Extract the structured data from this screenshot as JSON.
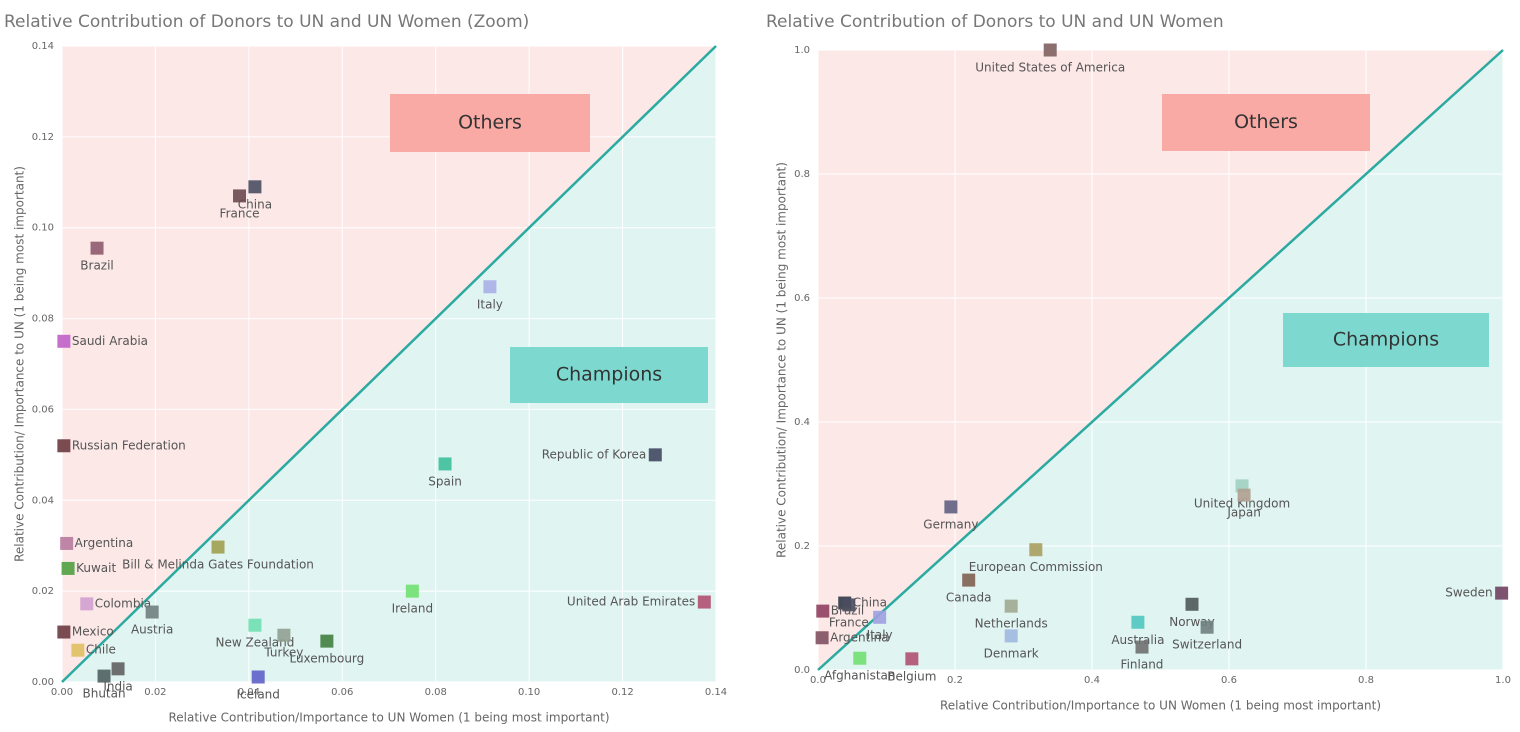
{
  "chart_data": [
    {
      "type": "scatter",
      "title": "Relative Contribution of Donors to UN and UN Women (Zoom)",
      "xlabel": "Relative Contribution/Importance to UN Women (1 being most important)",
      "ylabel": "Relative Contribution/ Importance to UN (1 being most important)",
      "annotations": [
        "Others",
        "Champions"
      ],
      "xlim": [
        0,
        0.14
      ],
      "ylim": [
        0,
        0.14
      ],
      "xticks": [
        {
          "value": 0,
          "label": "0.00"
        },
        {
          "value": 0.02,
          "label": "0.02"
        },
        {
          "value": 0.04,
          "label": "0.04"
        },
        {
          "value": 0.06,
          "label": "0.06"
        },
        {
          "value": 0.08,
          "label": "0.08"
        },
        {
          "value": 0.1,
          "label": "0.10"
        },
        {
          "value": 0.12,
          "label": "0.12"
        },
        {
          "value": 0.14,
          "label": "0.14"
        }
      ],
      "yticks": [
        {
          "value": 0,
          "label": "0.00"
        },
        {
          "value": 0.02,
          "label": "0.02"
        },
        {
          "value": 0.04,
          "label": "0.04"
        },
        {
          "value": 0.06,
          "label": "0.06"
        },
        {
          "value": 0.08,
          "label": "0.08"
        },
        {
          "value": 0.1,
          "label": "0.10"
        },
        {
          "value": 0.12,
          "label": "0.12"
        },
        {
          "value": 0.14,
          "label": "0.14"
        }
      ],
      "grid": true,
      "labels": [
        "China",
        "France",
        "Brazil",
        "Italy",
        "Saudi Arabia",
        "Russian Federation",
        "Spain",
        "Republic of Korea",
        "Argentina",
        "Bill & Melinda Gates Foundation",
        "Kuwait",
        "Ireland",
        "United Arab Emirates",
        "Colombia",
        "Mexico",
        "Austria",
        "New Zealand",
        "Turkey",
        "Luxembourg",
        "India",
        "Iceland",
        "Chile",
        "Bhutan"
      ],
      "x": [
        0.0413,
        0.038,
        0.0075,
        0.0916,
        0.0004,
        0.0004,
        0.082,
        0.127,
        0.001,
        0.0334,
        0.0013,
        0.075,
        0.1375,
        0.0053,
        0.0004,
        0.0193,
        0.0413,
        0.0475,
        0.0567,
        0.012,
        0.042,
        0.0034,
        0.009
      ],
      "values": [
        0.109,
        0.107,
        0.0955,
        0.087,
        0.075,
        0.052,
        0.048,
        0.05,
        0.0305,
        0.0297,
        0.025,
        0.02,
        0.0176,
        0.0172,
        0.011,
        0.0154,
        0.0125,
        0.0103,
        0.009,
        0.0029,
        0.0011,
        0.007,
        0.0013
      ],
      "colors": [
        "#4a4e60",
        "#6b4a50",
        "#8e5a6e",
        "#aab0e8",
        "#c060c8",
        "#6b3a40",
        "#3dbf9a",
        "#404860",
        "#b87aa0",
        "#a0a050",
        "#50a040",
        "#70e070",
        "#b05070",
        "#d0a0d0",
        "#6b3a40",
        "#708080",
        "#70e0b0",
        "#90a090",
        "#408040",
        "#606060",
        "#6060c8",
        "#e0c060",
        "#506060"
      ]
    },
    {
      "type": "scatter",
      "title": "Relative Contribution of Donors to UN and UN Women",
      "xlabel": "Relative Contribution/Importance to UN Women (1 being most important)",
      "ylabel": "Relative Contribution/ Importance to UN (1 being most important)",
      "annotations": [
        "Others",
        "Champions"
      ],
      "xlim": [
        0,
        1
      ],
      "ylim": [
        0,
        1
      ],
      "xticks": [
        {
          "value": 0,
          "label": "0.0"
        },
        {
          "value": 0.2,
          "label": "0.2"
        },
        {
          "value": 0.4,
          "label": "0.4"
        },
        {
          "value": 0.6,
          "label": "0.6"
        },
        {
          "value": 0.8,
          "label": "0.8"
        },
        {
          "value": 1,
          "label": "1.0"
        }
      ],
      "yticks": [
        {
          "value": 0,
          "label": "0.0"
        },
        {
          "value": 0.2,
          "label": "0.2"
        },
        {
          "value": 0.4,
          "label": "0.4"
        },
        {
          "value": 0.6,
          "label": "0.6"
        },
        {
          "value": 0.8,
          "label": "0.8"
        },
        {
          "value": 1,
          "label": "1.0"
        }
      ],
      "grid": true,
      "labels": [
        "United States of America",
        "Germany",
        "United Kingdom",
        "Japan",
        "European Commission",
        "Canada",
        "Sweden",
        "Norway",
        "Netherlands",
        "Switzerland",
        "Australia",
        "Denmark",
        "Finland",
        "China",
        "France",
        "Brazil",
        "Italy",
        "Belgium",
        "Argentina",
        "Afghanistan"
      ],
      "x": [
        0.339,
        0.194,
        0.619,
        0.622,
        0.318,
        0.22,
        0.998,
        0.546,
        0.282,
        0.568,
        0.467,
        0.282,
        0.473,
        0.039,
        0.045,
        0.007,
        0.09,
        0.137,
        0.006,
        0.061
      ],
      "values": [
        1.0,
        0.263,
        0.297,
        0.282,
        0.194,
        0.145,
        0.124,
        0.106,
        0.103,
        0.069,
        0.077,
        0.055,
        0.037,
        0.108,
        0.105,
        0.095,
        0.085,
        0.018,
        0.052,
        0.019
      ],
      "colors": [
        "#806060",
        "#606080",
        "#a0d0c0",
        "#b0a090",
        "#a8a060",
        "#806050",
        "#704060",
        "#505858",
        "#a0a890",
        "#708080",
        "#50c8c0",
        "#a0b8e0",
        "#707070",
        "#303848",
        "#4a4e60",
        "#904060",
        "#a0a0e0",
        "#b05070",
        "#805060",
        "#70e070"
      ]
    }
  ]
}
